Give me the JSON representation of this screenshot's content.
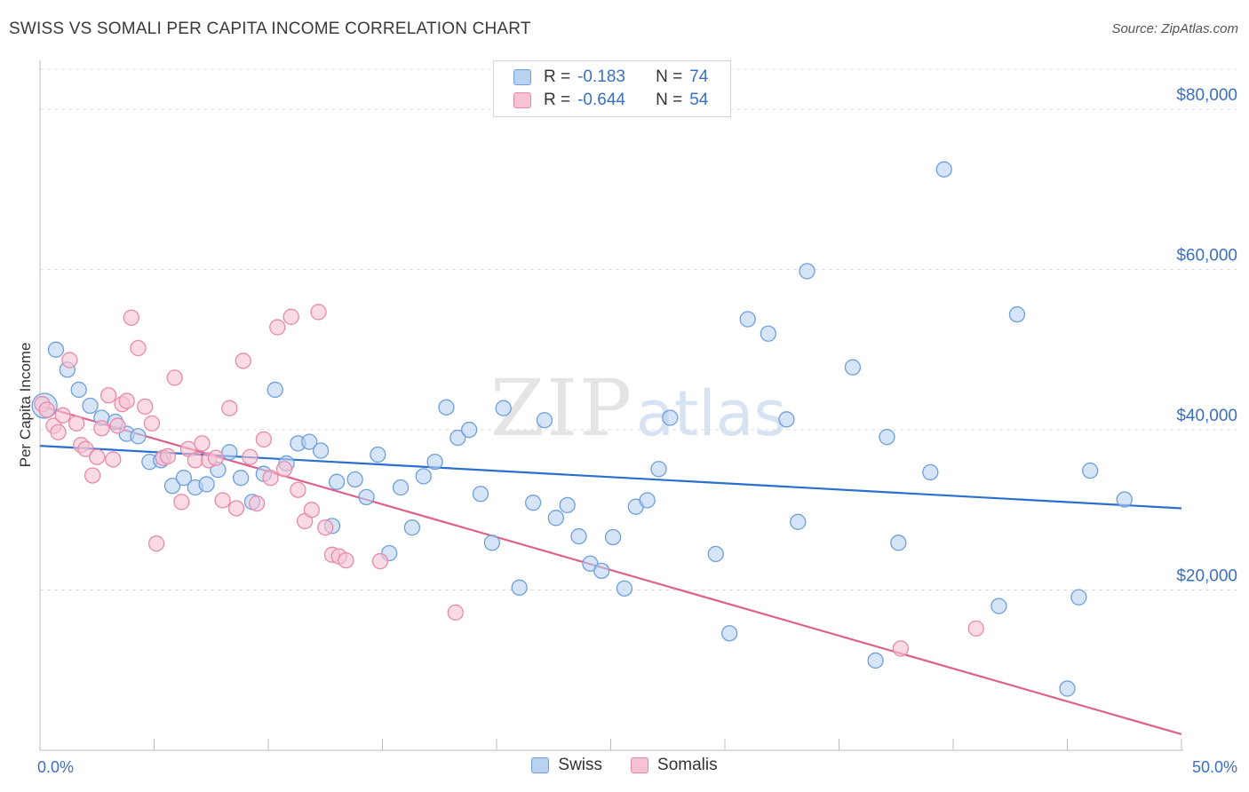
{
  "title": "SWISS VS SOMALI PER CAPITA INCOME CORRELATION CHART",
  "source": "Source: ZipAtlas.com",
  "watermark": {
    "zip": "ZIP",
    "atlas": "atlas"
  },
  "legend": {
    "rows": [
      {
        "r_label": "R =",
        "r_value": "-0.183",
        "n_label": "N =",
        "n_value": "74"
      },
      {
        "r_label": "R =",
        "r_value": "-0.644",
        "n_label": "N =",
        "n_value": "54"
      }
    ]
  },
  "bottom_legend": [
    "Swiss",
    "Somalis"
  ],
  "colors": {
    "swiss_fill": "#b9d2f2",
    "swiss_stroke": "#6f9fdb",
    "swiss_line": "#2a6fcf",
    "somali_fill": "#f7c3d3",
    "somali_stroke": "#e88aa8",
    "somali_line": "#e0608c",
    "grid": "#dcdcdc",
    "tick_text": "#3b6fc4"
  },
  "chart_data": {
    "type": "scatter",
    "title": "SWISS VS SOMALI PER CAPITA INCOME CORRELATION CHART",
    "xlabel": "",
    "ylabel": "Per Capita Income",
    "xlim": [
      0,
      50
    ],
    "ylim": [
      0,
      85000
    ],
    "x_tick_labels": [
      "0.0%",
      "50.0%"
    ],
    "y_ticks": [
      20000,
      40000,
      60000,
      80000
    ],
    "y_tick_labels": [
      "$20,000",
      "$40,000",
      "$60,000",
      "$80,000"
    ],
    "grid": true,
    "legend_position": "top-center",
    "series": [
      {
        "name": "Swiss",
        "trend": [
          [
            0,
            38000
          ],
          [
            50,
            30200
          ]
        ],
        "points": [
          [
            0.2,
            43000
          ],
          [
            0.7,
            50000
          ],
          [
            1.2,
            47500
          ],
          [
            1.7,
            45000
          ],
          [
            2.2,
            43000
          ],
          [
            2.7,
            41500
          ],
          [
            3.3,
            41000
          ],
          [
            3.8,
            39500
          ],
          [
            4.3,
            39200
          ],
          [
            4.8,
            36000
          ],
          [
            5.3,
            36200
          ],
          [
            5.8,
            33000
          ],
          [
            6.3,
            34000
          ],
          [
            6.8,
            32800
          ],
          [
            7.3,
            33200
          ],
          [
            7.8,
            35000
          ],
          [
            8.3,
            37200
          ],
          [
            8.8,
            34000
          ],
          [
            9.3,
            31000
          ],
          [
            9.8,
            34500
          ],
          [
            10.3,
            45000
          ],
          [
            10.8,
            35800
          ],
          [
            11.3,
            38300
          ],
          [
            11.8,
            38500
          ],
          [
            12.3,
            37400
          ],
          [
            12.8,
            28000
          ],
          [
            13.0,
            33500
          ],
          [
            13.8,
            33800
          ],
          [
            14.3,
            31600
          ],
          [
            14.8,
            36900
          ],
          [
            15.3,
            24600
          ],
          [
            15.8,
            32800
          ],
          [
            16.3,
            27800
          ],
          [
            16.8,
            34200
          ],
          [
            17.3,
            36000
          ],
          [
            17.8,
            42800
          ],
          [
            18.3,
            39000
          ],
          [
            18.8,
            40000
          ],
          [
            19.3,
            32000
          ],
          [
            19.8,
            25900
          ],
          [
            20.3,
            42700
          ],
          [
            21.0,
            20300
          ],
          [
            21.6,
            30900
          ],
          [
            22.1,
            41200
          ],
          [
            22.6,
            29000
          ],
          [
            23.1,
            30600
          ],
          [
            23.6,
            26700
          ],
          [
            24.1,
            23300
          ],
          [
            24.6,
            22400
          ],
          [
            25.1,
            26600
          ],
          [
            25.6,
            20200
          ],
          [
            26.1,
            30400
          ],
          [
            26.6,
            31200
          ],
          [
            27.1,
            35100
          ],
          [
            27.6,
            41500
          ],
          [
            29.6,
            24500
          ],
          [
            30.2,
            14600
          ],
          [
            31.0,
            53800
          ],
          [
            31.9,
            52000
          ],
          [
            32.7,
            41300
          ],
          [
            33.2,
            28500
          ],
          [
            33.6,
            59800
          ],
          [
            35.6,
            47800
          ],
          [
            36.6,
            11200
          ],
          [
            37.1,
            39100
          ],
          [
            37.6,
            25900
          ],
          [
            39.0,
            34700
          ],
          [
            39.6,
            72500
          ],
          [
            42.0,
            18000
          ],
          [
            42.8,
            54400
          ],
          [
            45.0,
            7700
          ],
          [
            45.5,
            19100
          ],
          [
            46.0,
            34900
          ],
          [
            47.5,
            31300
          ]
        ]
      },
      {
        "name": "Somalis",
        "trend": [
          [
            0,
            43000
          ],
          [
            50,
            2000
          ]
        ],
        "points": [
          [
            0.1,
            43200
          ],
          [
            0.3,
            42500
          ],
          [
            0.6,
            40500
          ],
          [
            0.8,
            39700
          ],
          [
            1.0,
            41800
          ],
          [
            1.3,
            48700
          ],
          [
            1.6,
            40800
          ],
          [
            1.8,
            38100
          ],
          [
            2.0,
            37600
          ],
          [
            2.3,
            34300
          ],
          [
            2.5,
            36600
          ],
          [
            2.7,
            40200
          ],
          [
            3.0,
            44300
          ],
          [
            3.2,
            36300
          ],
          [
            3.4,
            40500
          ],
          [
            3.6,
            43200
          ],
          [
            3.8,
            43600
          ],
          [
            4.0,
            54000
          ],
          [
            4.3,
            50200
          ],
          [
            4.6,
            42900
          ],
          [
            4.9,
            40800
          ],
          [
            5.1,
            25800
          ],
          [
            5.4,
            36500
          ],
          [
            5.6,
            36700
          ],
          [
            5.9,
            46500
          ],
          [
            6.2,
            31000
          ],
          [
            6.5,
            37600
          ],
          [
            6.8,
            36200
          ],
          [
            7.1,
            38300
          ],
          [
            7.4,
            36200
          ],
          [
            7.7,
            36500
          ],
          [
            8.0,
            31200
          ],
          [
            8.3,
            42700
          ],
          [
            8.6,
            30200
          ],
          [
            8.9,
            48600
          ],
          [
            9.2,
            36600
          ],
          [
            9.5,
            30800
          ],
          [
            9.8,
            38800
          ],
          [
            10.1,
            34000
          ],
          [
            10.4,
            52800
          ],
          [
            10.7,
            35100
          ],
          [
            11.0,
            54100
          ],
          [
            11.3,
            32500
          ],
          [
            11.6,
            28600
          ],
          [
            11.9,
            30000
          ],
          [
            12.2,
            54700
          ],
          [
            12.5,
            27800
          ],
          [
            12.8,
            24400
          ],
          [
            13.1,
            24200
          ],
          [
            13.4,
            23700
          ],
          [
            14.9,
            23600
          ],
          [
            18.2,
            17200
          ],
          [
            37.7,
            12700
          ],
          [
            41.0,
            15200
          ]
        ]
      }
    ]
  }
}
